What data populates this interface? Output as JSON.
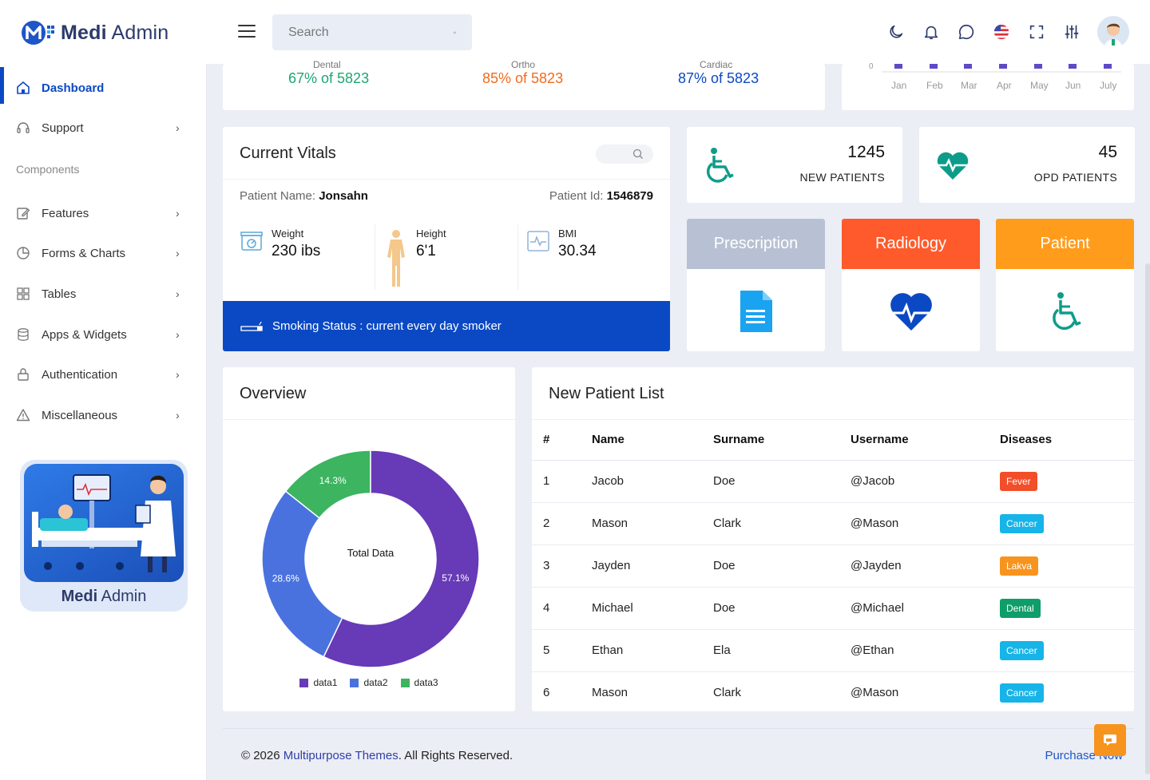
{
  "brand": {
    "name_bold": "Medi",
    "name_rest": " Admin"
  },
  "search": {
    "placeholder": "Search"
  },
  "sidebar": {
    "items": [
      {
        "label": "Dashboard"
      },
      {
        "label": "Support"
      },
      {
        "label": "Features"
      },
      {
        "label": "Forms & Charts"
      },
      {
        "label": "Tables"
      },
      {
        "label": "Apps & Widgets"
      },
      {
        "label": "Authentication"
      },
      {
        "label": "Miscellaneous"
      }
    ],
    "section_label": "Components",
    "promo": {
      "bold": "Medi",
      "rest": " Admin"
    }
  },
  "stats_strip": [
    {
      "label": "Dental",
      "value": "67% of 5823",
      "color": "#1ea672"
    },
    {
      "label": "Ortho",
      "value": "85% of 5823",
      "color": "#f26b1d"
    },
    {
      "label": "Cardiac",
      "value": "87% of 5823",
      "color": "#0b49c4"
    }
  ],
  "mini_chart": {
    "y_tick": "0",
    "months": [
      "Jan",
      "Feb",
      "Mar",
      "Apr",
      "May",
      "Jun",
      "July"
    ]
  },
  "vitals": {
    "title": "Current Vitals",
    "patient_name_label": "Patient Name:",
    "patient_name": "Jonsahn",
    "patient_id_label": "Patient Id:",
    "patient_id": "1546879",
    "weight_label": "Weight",
    "weight": "230 ibs",
    "height_label": "Height",
    "height": "6'1",
    "bmi_label": "BMI",
    "bmi": "30.34",
    "smoking": "Smoking Status : current every day smoker"
  },
  "patient_stats": [
    {
      "count": "1245",
      "label": "NEW PATIENTS"
    },
    {
      "count": "45",
      "label": "OPD PATIENTS"
    }
  ],
  "tiles": [
    {
      "label": "Prescription",
      "color": "#b8c1d3"
    },
    {
      "label": "Radiology",
      "color": "#ff5a2b"
    },
    {
      "label": "Patient",
      "color": "#ff9c1b"
    }
  ],
  "overview": {
    "title": "Overview",
    "center_label": "Total Data"
  },
  "chart_data": {
    "type": "pie",
    "variant": "donut",
    "title": "Overview",
    "center_text": "Total Data",
    "series": [
      {
        "name": "data1",
        "value": 57.1,
        "label": "57.1%",
        "color": "#673ab7"
      },
      {
        "name": "data2",
        "value": 28.6,
        "label": "28.6%",
        "color": "#4a72df"
      },
      {
        "name": "data3",
        "value": 14.3,
        "label": "14.3%",
        "color": "#3cb460"
      }
    ],
    "legend": "bottom"
  },
  "patient_list": {
    "title": "New Patient List",
    "headers": [
      "#",
      "Name",
      "Surname",
      "Username",
      "Diseases"
    ],
    "rows": [
      {
        "id": "1",
        "name": "Jacob",
        "surname": "Doe",
        "username": "@Jacob",
        "disease": "Fever",
        "color": "#f24e2a"
      },
      {
        "id": "2",
        "name": "Mason",
        "surname": "Clark",
        "username": "@Mason",
        "disease": "Cancer",
        "color": "#16b4e8"
      },
      {
        "id": "3",
        "name": "Jayden",
        "surname": "Doe",
        "username": "@Jayden",
        "disease": "Lakva",
        "color": "#f7941d"
      },
      {
        "id": "4",
        "name": "Michael",
        "surname": "Doe",
        "username": "@Michael",
        "disease": "Dental",
        "color": "#0f9d6a"
      },
      {
        "id": "5",
        "name": "Ethan",
        "surname": "Ela",
        "username": "@Ethan",
        "disease": "Cancer",
        "color": "#16b4e8"
      },
      {
        "id": "6",
        "name": "Mason",
        "surname": "Clark",
        "username": "@Mason",
        "disease": "Cancer",
        "color": "#16b4e8"
      }
    ]
  },
  "footer": {
    "copy_prefix": "© 2026 ",
    "copy_link": "Multipurpose Themes",
    "copy_suffix": ". All Rights Reserved.",
    "purchase": "Purchase Now"
  }
}
